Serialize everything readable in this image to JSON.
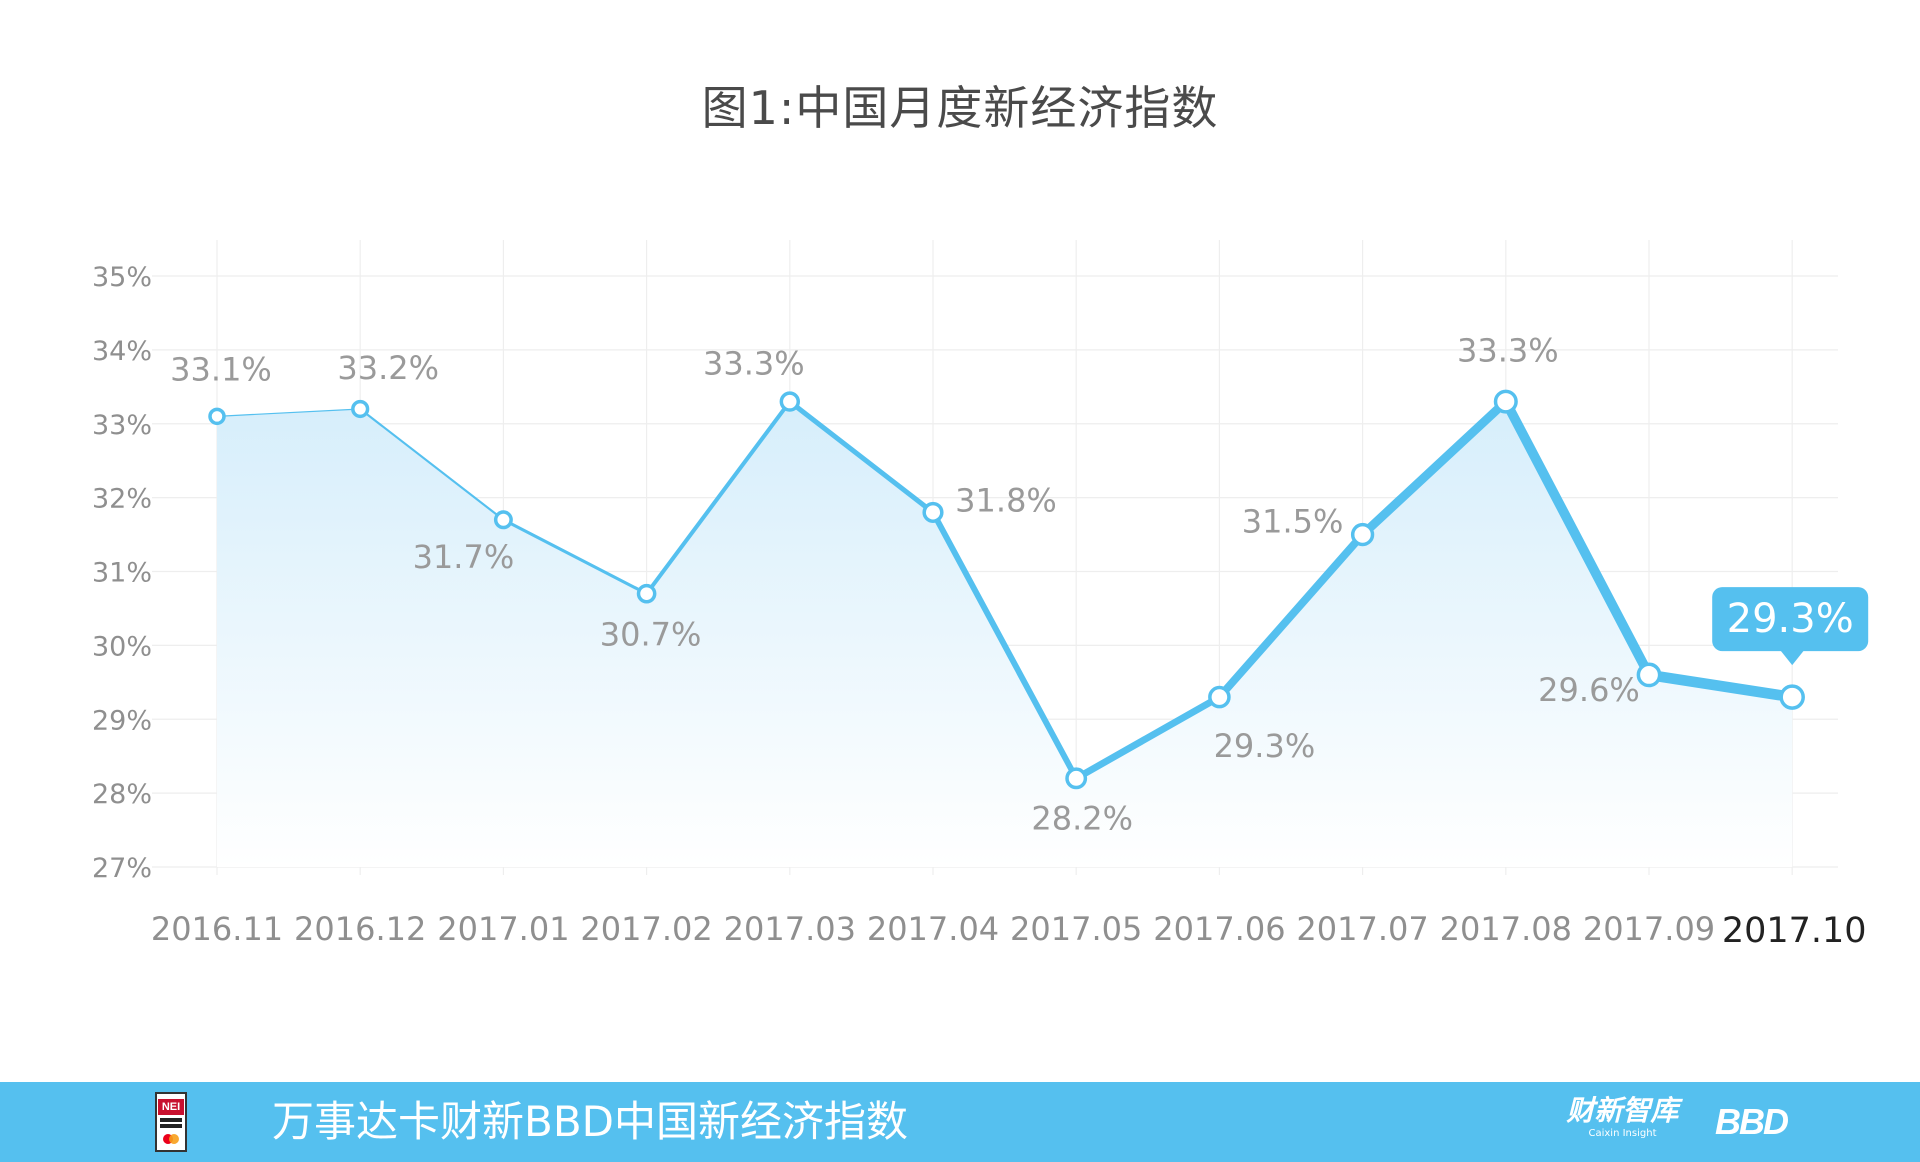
{
  "chart_data": {
    "type": "line",
    "title": "图1:中国月度新经济指数",
    "categories": [
      "2016.11",
      "2016.12",
      "2017.01",
      "2017.02",
      "2017.03",
      "2017.04",
      "2017.05",
      "2017.06",
      "2017.07",
      "2017.08",
      "2017.09",
      "2017.10"
    ],
    "values": [
      33.1,
      33.2,
      31.7,
      30.7,
      33.3,
      31.8,
      28.2,
      29.3,
      31.5,
      33.3,
      29.6,
      29.3
    ],
    "data_labels": [
      "33.1%",
      "33.2%",
      "31.7%",
      "30.7%",
      "33.3%",
      "31.8%",
      "28.2%",
      "29.3%",
      "31.5%",
      "33.3%",
      "29.6%",
      "29.3%"
    ],
    "y_ticks": [
      27,
      28,
      29,
      30,
      31,
      32,
      33,
      34,
      35
    ],
    "y_tick_labels": [
      "27%",
      "28%",
      "29%",
      "30%",
      "31%",
      "32%",
      "33%",
      "34%",
      "35%"
    ],
    "ylim": [
      27,
      35
    ],
    "grid": true,
    "highlight": {
      "category": "2017.10",
      "label": "29.3%"
    },
    "colors": {
      "line": "#55c0ef",
      "area_top": "#d6eefb",
      "area_bottom": "#ffffff",
      "grid": "#eeeeee",
      "callout": "#55c0ef"
    }
  },
  "footer": {
    "text": "万事达卡财新BBD中国新经济指数",
    "logo_left": "NEI",
    "logo_caixin_cn": "财新智库",
    "logo_caixin_en": "Caixin Insight",
    "logo_bbd": "BBD",
    "background": "#55c0ef"
  }
}
